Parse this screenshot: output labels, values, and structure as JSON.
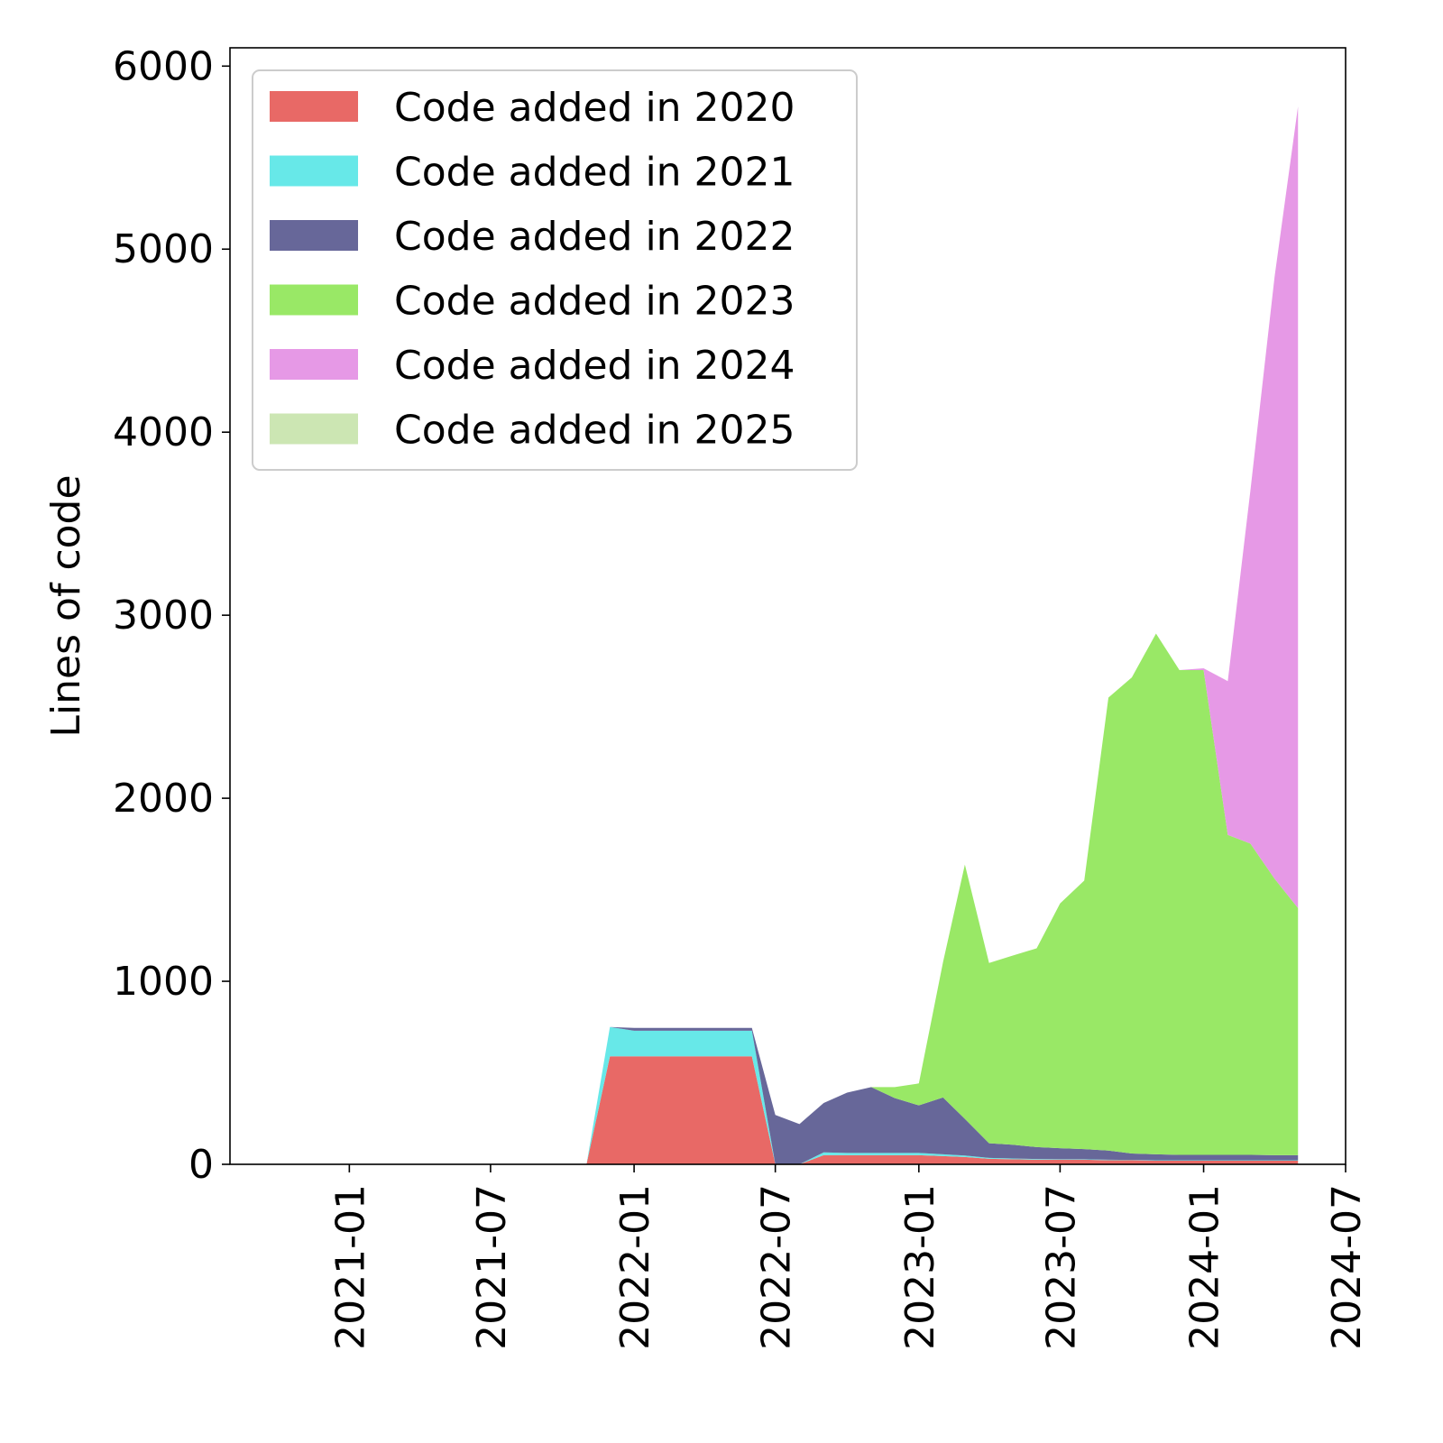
{
  "chart_data": {
    "type": "stacked_area",
    "y_label": "Lines of code",
    "x": [
      "2021-11",
      "2021-12",
      "2022-01",
      "2022-02",
      "2022-03",
      "2022-04",
      "2022-05",
      "2022-06",
      "2022-07",
      "2022-08",
      "2022-09",
      "2022-10",
      "2022-11",
      "2022-12",
      "2023-01",
      "2023-02",
      "2023-03",
      "2023-04",
      "2023-05",
      "2023-06",
      "2023-07",
      "2023-08",
      "2023-09",
      "2023-10",
      "2023-11",
      "2023-12",
      "2024-01",
      "2024-02",
      "2024-03",
      "2024-04",
      "2024-05"
    ],
    "series": [
      {
        "name": "Code added in 2020",
        "color": "#e86966",
        "values": [
          0,
          590,
          590,
          590,
          590,
          590,
          590,
          590,
          0,
          0,
          50,
          50,
          50,
          50,
          50,
          45,
          40,
          30,
          28,
          25,
          25,
          25,
          22,
          22,
          20,
          20,
          20,
          20,
          20,
          20,
          20
        ]
      },
      {
        "name": "Code added in 2021",
        "color": "#67e8e8",
        "values": [
          0,
          160,
          140,
          140,
          140,
          140,
          140,
          140,
          0,
          0,
          15,
          12,
          12,
          12,
          12,
          10,
          8,
          5,
          4,
          4,
          3,
          3,
          3,
          2,
          2,
          2,
          2,
          2,
          2,
          2,
          2
        ]
      },
      {
        "name": "Code added in 2022",
        "color": "#676799",
        "values": [
          0,
          0,
          15,
          15,
          15,
          15,
          15,
          15,
          270,
          220,
          270,
          330,
          360,
          300,
          260,
          310,
          200,
          80,
          75,
          65,
          60,
          55,
          50,
          35,
          33,
          30,
          30,
          30,
          30,
          28,
          28
        ]
      },
      {
        "name": "Code added in 2023",
        "color": "#99e866",
        "values": [
          0,
          0,
          0,
          0,
          0,
          0,
          0,
          0,
          0,
          0,
          0,
          0,
          0,
          60,
          120,
          740,
          1390,
          985,
          1033,
          1086,
          1337,
          1467,
          2475,
          2601,
          2845,
          2648,
          2648,
          1748,
          1700,
          1510,
          1350
        ]
      },
      {
        "name": "Code added in 2024",
        "color": "#e699e6",
        "values": [
          0,
          0,
          0,
          0,
          0,
          0,
          0,
          0,
          0,
          0,
          0,
          0,
          0,
          0,
          0,
          0,
          0,
          0,
          0,
          0,
          0,
          0,
          0,
          0,
          0,
          0,
          10,
          840,
          1930,
          3290,
          4380
        ]
      },
      {
        "name": "Code added in 2025",
        "color": "#cce6b3",
        "values": [
          0,
          0,
          0,
          0,
          0,
          0,
          0,
          0,
          0,
          0,
          0,
          0,
          0,
          0,
          0,
          0,
          0,
          0,
          0,
          0,
          0,
          0,
          0,
          0,
          0,
          0,
          0,
          0,
          0,
          0,
          0
        ]
      }
    ],
    "xlim": [
      "2020-08",
      "2024-07"
    ],
    "xticks": [
      "2021-01",
      "2021-07",
      "2022-01",
      "2022-07",
      "2023-01",
      "2023-07",
      "2024-01",
      "2024-07"
    ],
    "ylim": [
      0,
      6100
    ],
    "yticks": [
      0,
      1000,
      2000,
      3000,
      4000,
      5000,
      6000
    ],
    "legend": "upper left"
  }
}
